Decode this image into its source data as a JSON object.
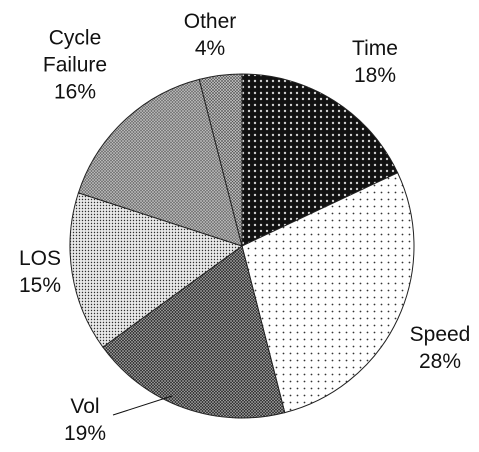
{
  "chart_data": {
    "type": "pie",
    "categories": [
      "Time",
      "Speed",
      "Vol",
      "LOS",
      "Cycle Failure",
      "Other"
    ],
    "values": [
      18,
      28,
      19,
      15,
      16,
      4
    ],
    "value_labels": [
      "18%",
      "28%",
      "19%",
      "15%",
      "16%",
      "4%"
    ],
    "colors": [
      "#111111",
      "#ffffff",
      "#2a2a2a",
      "#e8e8e8",
      "#6e6e6e",
      "#c4c4c4"
    ]
  }
}
